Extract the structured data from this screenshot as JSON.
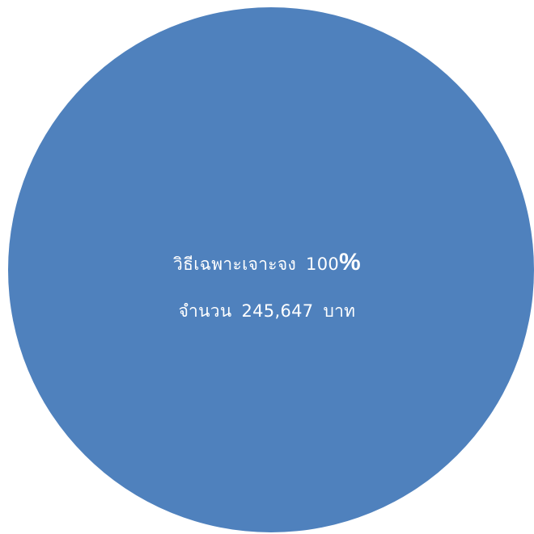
{
  "chart_data": {
    "type": "pie",
    "slices": [
      {
        "label": "วิธีเฉพาะเจาะจง",
        "value": 245647,
        "percent": 100,
        "amount_text": "245,647",
        "color": "#4f81bd"
      }
    ],
    "data_label": {
      "percent_text": "100",
      "percent_sign": "%",
      "count_prefix": "จำนวน",
      "unit": "บาท"
    }
  }
}
